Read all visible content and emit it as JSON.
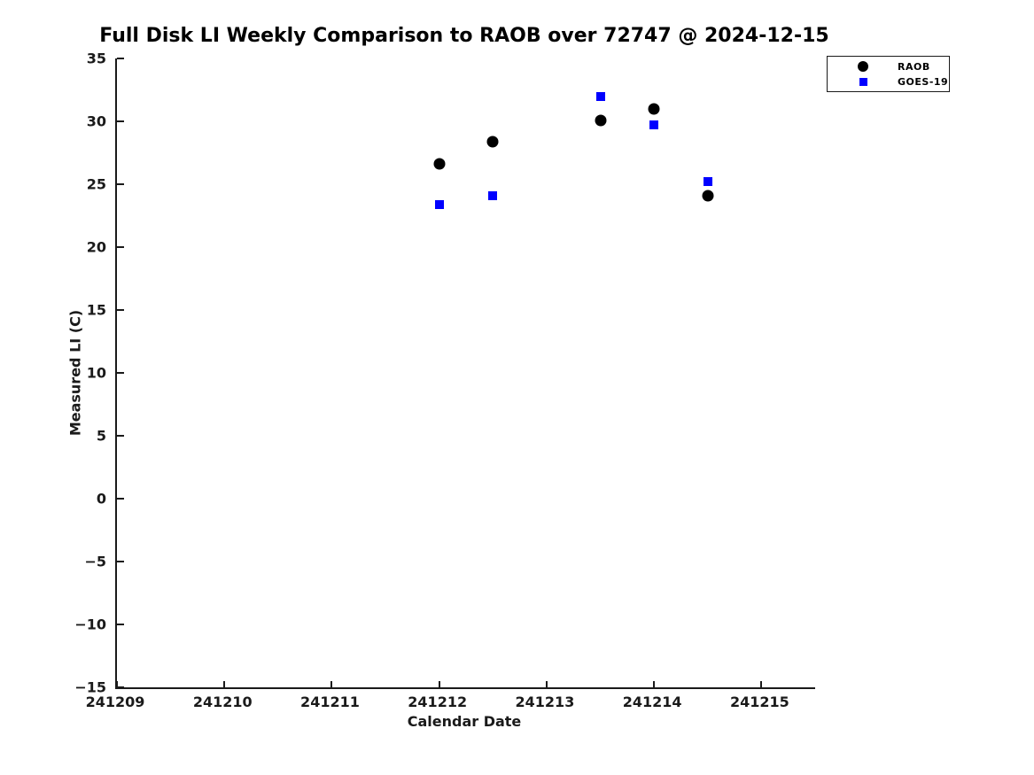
{
  "chart_data": {
    "type": "scatter",
    "title": "Full Disk LI Weekly Comparison to RAOB over 72747 @ 2024-12-15",
    "xlabel": "Calendar Date",
    "ylabel": "Measured LI (C)",
    "xlim": [
      241209,
      241215.5
    ],
    "ylim": [
      -15,
      35
    ],
    "grid": false,
    "legend_position": "top-right outside axes",
    "xticks": {
      "values": [
        241209,
        241210,
        241211,
        241212,
        241213,
        241214,
        241215
      ],
      "labels": [
        "241209",
        "241210",
        "241211",
        "241212",
        "241213",
        "241214",
        "241215"
      ]
    },
    "yticks": {
      "values": [
        35,
        30,
        25,
        20,
        15,
        10,
        5,
        0,
        -5,
        -10,
        -15
      ],
      "labels": [
        "35",
        "30",
        "25",
        "20",
        "15",
        "10",
        "5",
        "0",
        "-5",
        "-10",
        "-15"
      ]
    },
    "series": [
      {
        "name": "RAOB",
        "marker": "circle",
        "color": "#000000",
        "points": [
          [
            241212.0,
            26.6
          ],
          [
            241212.5,
            28.4
          ],
          [
            241213.5,
            30.1
          ],
          [
            241214.0,
            31.0
          ],
          [
            241214.5,
            24.1
          ]
        ]
      },
      {
        "name": "GOES-19",
        "marker": "square",
        "color": "#0000ff",
        "points": [
          [
            241212.0,
            23.4
          ],
          [
            241212.5,
            24.1
          ],
          [
            241213.5,
            32.0
          ],
          [
            241214.0,
            29.7
          ],
          [
            241214.5,
            25.2
          ]
        ]
      }
    ]
  }
}
